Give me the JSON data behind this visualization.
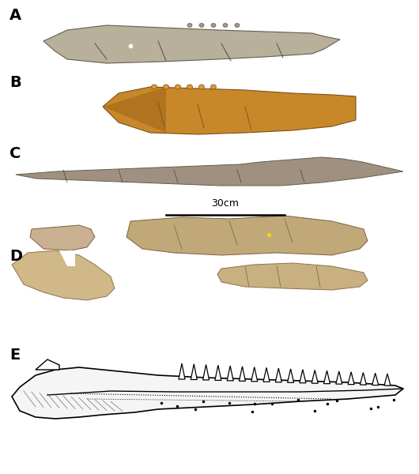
{
  "figure_width": 5.3,
  "figure_height": 6.0,
  "dpi": 100,
  "background_color": "#ffffff",
  "label_fontsize": 14,
  "label_fontweight": "bold",
  "scale_bar_text": "30cm",
  "scale_bar_fontsize": 9,
  "panels": {
    "A": {
      "color_main": "#b8b09a",
      "color_dark": "#8a8070",
      "color_light": "#d0c8b8"
    },
    "B": {
      "color_main": "#c8882a",
      "color_dark": "#8a5a18",
      "color_light": "#e8a848"
    },
    "C": {
      "color_main": "#a09080",
      "color_dark": "#706858",
      "color_light": "#c0b0a0"
    },
    "D": {
      "color_main": "#c8b090",
      "color_dark": "#907858",
      "color_light": "#e0c8a8"
    },
    "E": {
      "color_outline": "#000000",
      "color_fill": "#ffffff",
      "color_dots": "#404040"
    }
  }
}
